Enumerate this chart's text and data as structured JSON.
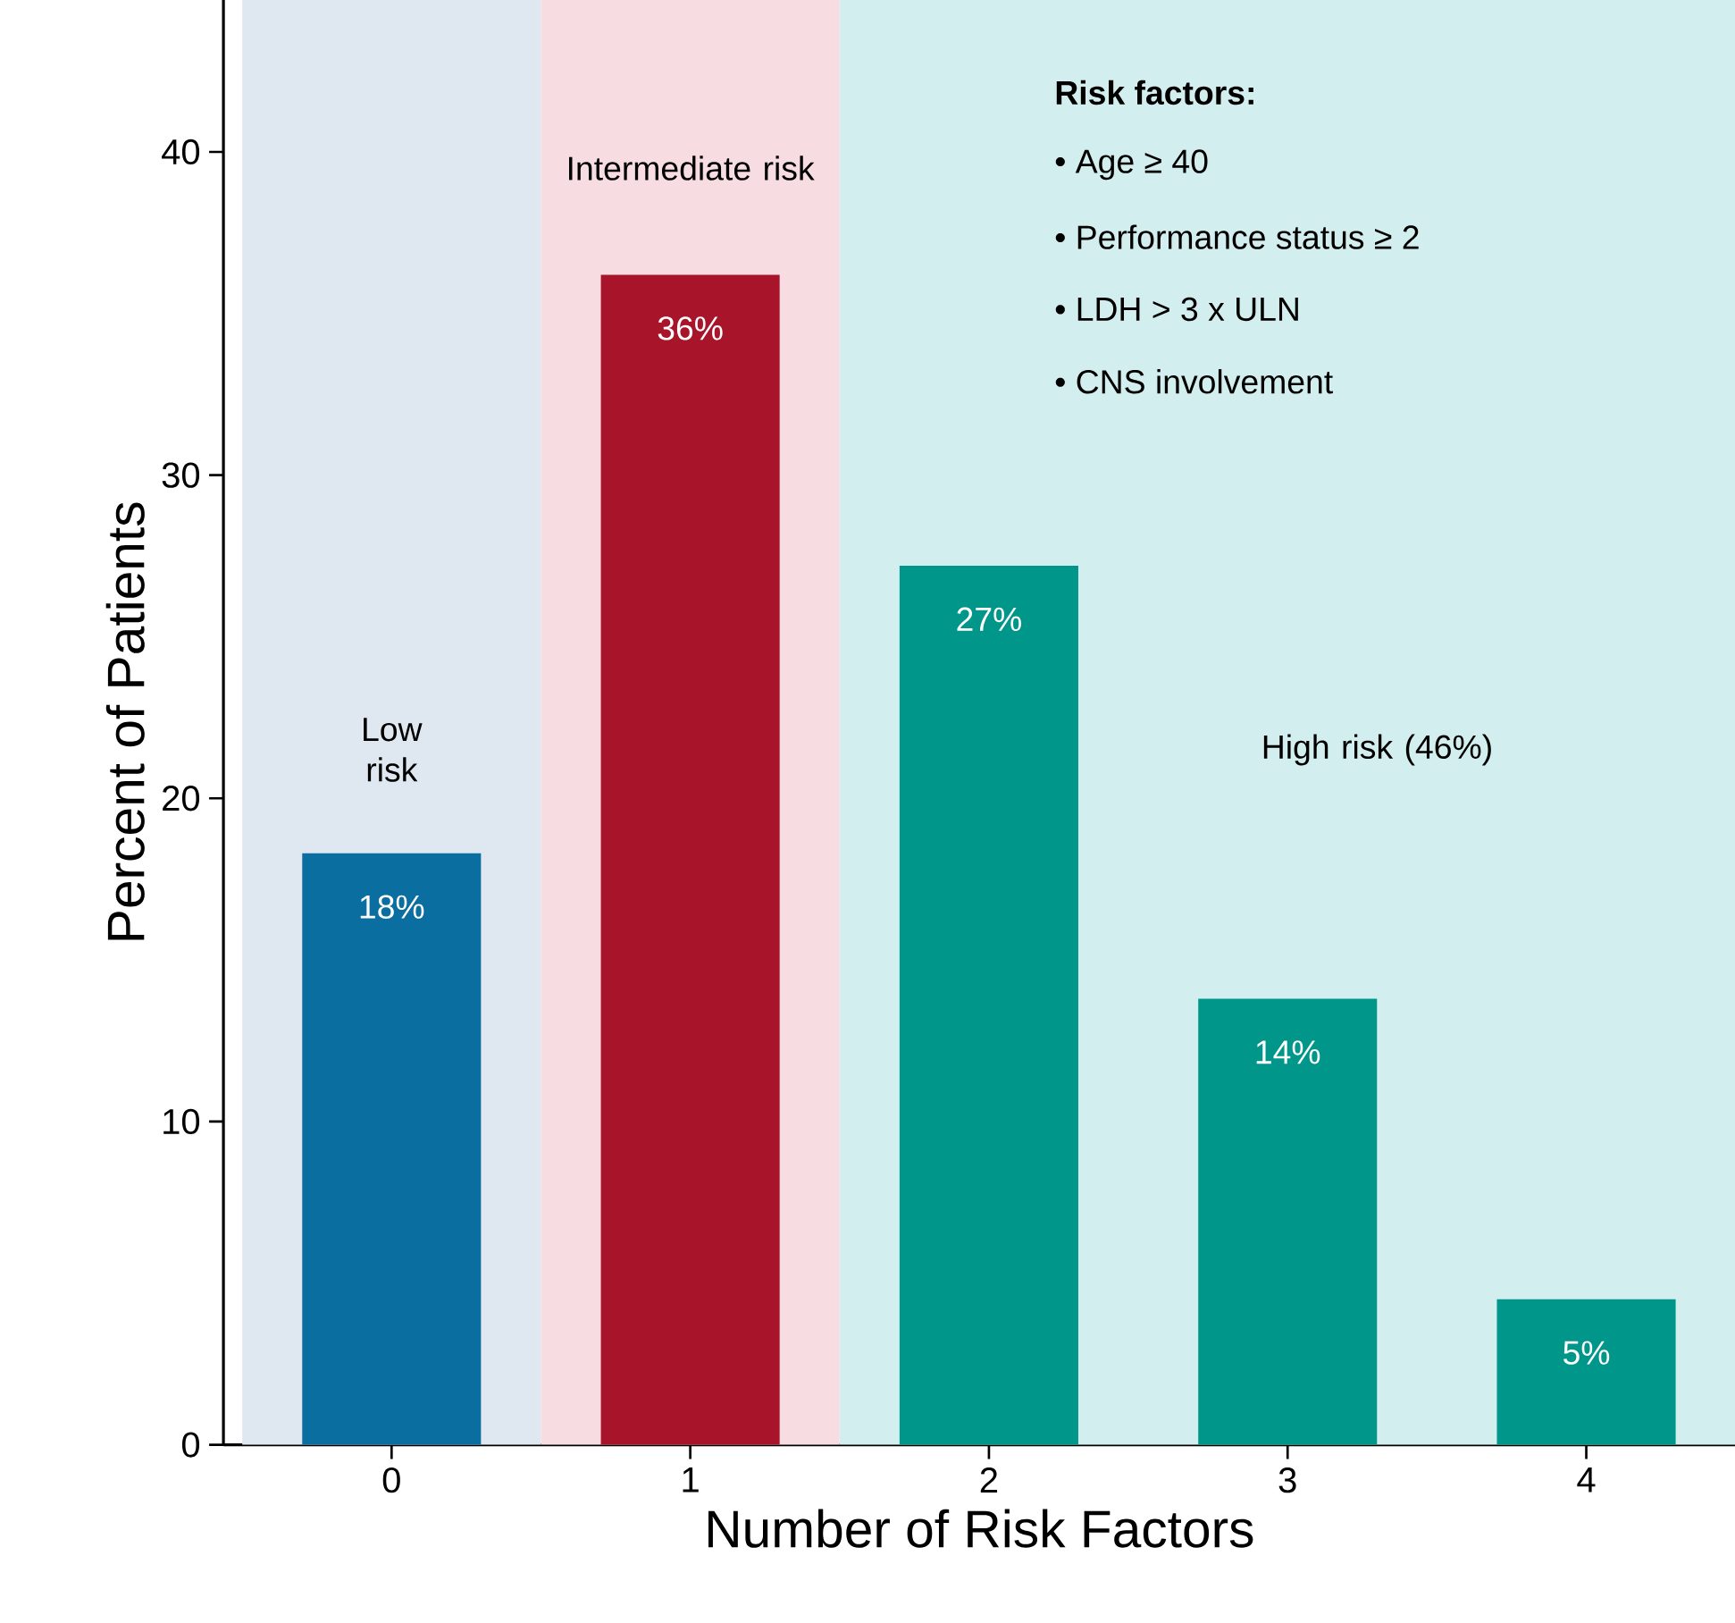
{
  "chart_data": {
    "type": "bar",
    "xlabel": "Number of Risk Factors",
    "ylabel": "Percent of Patients",
    "categories": [
      "0",
      "1",
      "2",
      "3",
      "4"
    ],
    "values": [
      18.3,
      36.2,
      27.2,
      13.8,
      4.5
    ],
    "colors": [
      "#0a6fa0",
      "#a8152b",
      "#00968a",
      "#00968a",
      "#00968a"
    ],
    "value_labels": [
      "18%",
      "36%",
      "27%",
      "14%",
      "5%"
    ],
    "ylim": [
      0,
      44.7
    ],
    "yticks": [
      0,
      10,
      20,
      30,
      40
    ],
    "bands": [
      {
        "axis": "x",
        "from": "0",
        "to": "0",
        "label": "Low risk",
        "color": "#dfe8f0"
      },
      {
        "axis": "x",
        "from": "1",
        "to": "1",
        "label": "Intermediate risk",
        "color": "#f7dde2"
      },
      {
        "axis": "x",
        "from": "2",
        "to": "4",
        "label": "High risk (46%)",
        "color": "#d3eeee"
      }
    ],
    "annotations": [
      "Risk factors:",
      "• Age ≥ 40",
      "• Performance status ≥ 2",
      "• LDH > 3 x ULN",
      "• CNS involvement"
    ],
    "grid": false
  }
}
